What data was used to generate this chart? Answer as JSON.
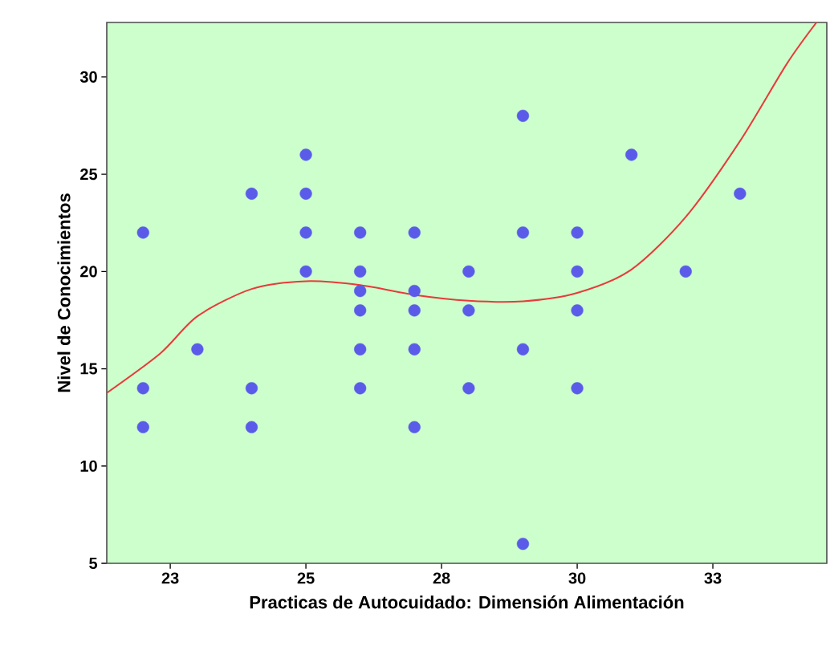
{
  "chart_data": {
    "type": "scatter",
    "xlabel": "Practicas de Autocuidado: Dimensión Alimentación",
    "ylabel": "Nivel de Conocimientos",
    "xlim": [
      21.33,
      34.6
    ],
    "ylim": [
      5,
      32.8
    ],
    "xticks": [
      {
        "value": 22.5,
        "label": "23"
      },
      {
        "value": 25,
        "label": "25"
      },
      {
        "value": 27.5,
        "label": "28"
      },
      {
        "value": 30,
        "label": "30"
      },
      {
        "value": 32.5,
        "label": "33"
      }
    ],
    "yticks": [
      5,
      10,
      15,
      20,
      25,
      30
    ],
    "grid": false,
    "series": [
      {
        "marker": "circle",
        "color": "#5b5bea",
        "x": [
          22,
          22,
          22,
          23,
          24,
          24,
          24,
          25,
          25,
          25,
          25,
          26,
          26,
          26,
          26,
          26,
          26,
          27,
          27,
          27,
          27,
          27,
          28,
          28,
          28,
          29,
          29,
          29,
          29,
          30,
          30,
          30,
          30,
          31,
          32,
          33
        ],
        "values": [
          22,
          14,
          12,
          16,
          24,
          14,
          12,
          26,
          24,
          22,
          20,
          22,
          20,
          19,
          18,
          16,
          14,
          22,
          19,
          18,
          16,
          12,
          20,
          18,
          14,
          28,
          22,
          16,
          6,
          22,
          20,
          18,
          14,
          26,
          20,
          24
        ]
      },
      {
        "type": "line",
        "marker": "none",
        "color": "#e83a3a",
        "x": [
          21.33,
          22.32,
          23,
          24,
          25,
          26,
          27,
          28,
          29,
          30,
          31,
          32,
          33,
          33.86,
          34.41
        ],
        "values": [
          13.76,
          15.8,
          17.7,
          19.1,
          19.5,
          19.3,
          18.8,
          18.5,
          18.47,
          18.9,
          20.1,
          22.8,
          26.7,
          30.66,
          32.8
        ]
      }
    ]
  }
}
